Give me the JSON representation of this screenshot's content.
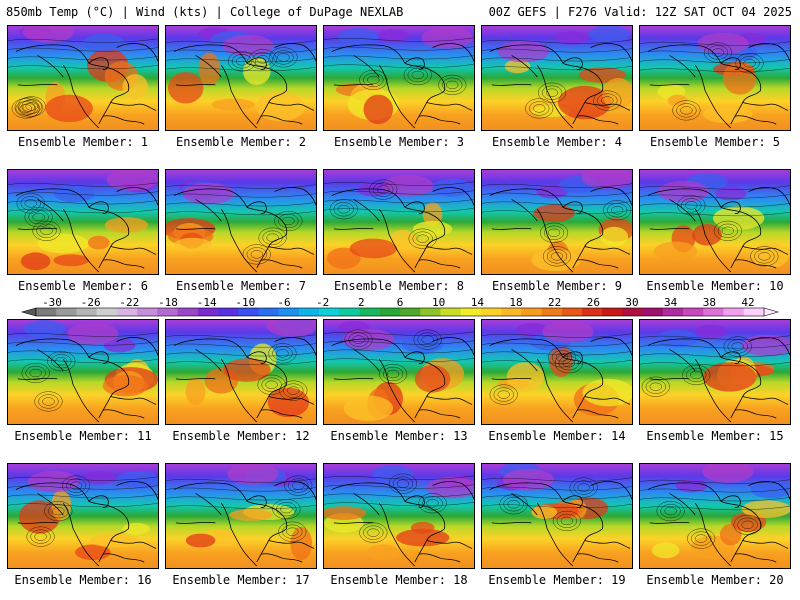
{
  "header": {
    "left": "850mb Temp (°C) | Wind (kts) | College of DuPage NEXLAB",
    "right": "00Z GEFS | F276 Valid: 12Z SAT OCT 04 2025"
  },
  "members": [
    "Ensemble Member: 1",
    "Ensemble Member: 2",
    "Ensemble Member: 3",
    "Ensemble Member: 4",
    "Ensemble Member: 5",
    "Ensemble Member: 6",
    "Ensemble Member: 7",
    "Ensemble Member: 8",
    "Ensemble Member: 9",
    "Ensemble Member: 10",
    "Ensemble Member: 11",
    "Ensemble Member: 12",
    "Ensemble Member: 13",
    "Ensemble Member: 14",
    "Ensemble Member: 15",
    "Ensemble Member: 16",
    "Ensemble Member: 17",
    "Ensemble Member: 18",
    "Ensemble Member: 19",
    "Ensemble Member: 20"
  ],
  "colorbar": {
    "ticks": [
      "-30",
      "-26",
      "-22",
      "-18",
      "-14",
      "-10",
      "-6",
      "-2",
      "2",
      "6",
      "10",
      "14",
      "18",
      "22",
      "26",
      "30",
      "34",
      "38",
      "42"
    ],
    "colors": [
      "#7c7c7c",
      "#9a9a9a",
      "#b4b4b4",
      "#cfcfcf",
      "#d9b3e6",
      "#c68fdc",
      "#b36ad2",
      "#9a48c8",
      "#7c2bd0",
      "#5a30e0",
      "#3b50f0",
      "#2a6ff0",
      "#1d92f0",
      "#10b4e8",
      "#0fd0d8",
      "#12c8a0",
      "#18b860",
      "#28a838",
      "#4ea82a",
      "#8cc42a",
      "#c8dc28",
      "#f0ec28",
      "#fcd228",
      "#fcb828",
      "#f89c20",
      "#f07c18",
      "#e85818",
      "#dc3018",
      "#c81818",
      "#b01040",
      "#a01070",
      "#b02aa0",
      "#c848c0",
      "#e070d8",
      "#f0a0ee",
      "#ffd0ff"
    ]
  }
}
